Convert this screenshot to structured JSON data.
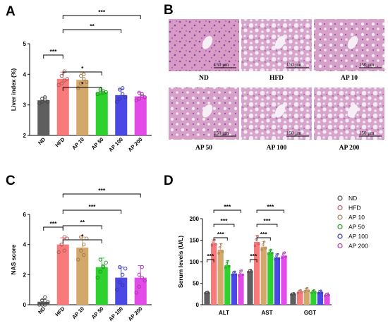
{
  "panels": {
    "A": "A",
    "B": "B",
    "C": "C",
    "D": "D"
  },
  "colors": {
    "ND": "#5f5f5f",
    "HFD": "#f87a7a",
    "AP 10": "#d4a86a",
    "AP 50": "#2fd12f",
    "AP 100": "#4b49e6",
    "AP 200": "#e24be8"
  },
  "panelB": {
    "images": [
      {
        "label": "ND",
        "scale": "150 μm"
      },
      {
        "label": "HFD",
        "scale": "150 μm"
      },
      {
        "label": "AP 10",
        "scale": "150 μm"
      },
      {
        "label": "AP 50",
        "scale": "150 μm"
      },
      {
        "label": "AP 100",
        "scale": "150 μm"
      },
      {
        "label": "AP 200",
        "scale": "150 μm"
      }
    ]
  },
  "chart_data": [
    {
      "panel": "A",
      "type": "bar",
      "ylabel": "Liver index (%)",
      "ylim": [
        2,
        5
      ],
      "yticks": [
        2,
        3,
        4,
        5
      ],
      "categories": [
        "ND",
        "HFD",
        "AP 10",
        "AP 50",
        "AP 100",
        "AP 200"
      ],
      "values": [
        3.15,
        3.85,
        3.82,
        3.42,
        3.32,
        3.28
      ],
      "errors": [
        0.1,
        0.22,
        0.22,
        0.08,
        0.2,
        0.12
      ],
      "points": [
        [
          3.05,
          3.1,
          3.15,
          3.2,
          3.25,
          3.1
        ],
        [
          3.65,
          3.7,
          3.8,
          3.95,
          4.1,
          3.85
        ],
        [
          3.55,
          3.7,
          3.85,
          3.95,
          4.0,
          3.75
        ],
        [
          3.35,
          3.4,
          3.45,
          3.5,
          3.4,
          3.42
        ],
        [
          3.1,
          3.2,
          3.35,
          3.5,
          3.55,
          3.25
        ],
        [
          3.15,
          3.2,
          3.3,
          3.4,
          3.35,
          3.25
        ]
      ],
      "significance": [
        {
          "from": 0,
          "to": 1,
          "label": "***"
        },
        {
          "from": 1,
          "to": 3,
          "label": "*"
        },
        {
          "from": 1,
          "to": 3,
          "label": "*"
        },
        {
          "from": 1,
          "to": 4,
          "label": "**"
        },
        {
          "from": 1,
          "to": 5,
          "label": "***"
        }
      ]
    },
    {
      "panel": "C",
      "type": "bar",
      "ylabel": "NAS score",
      "ylim": [
        0,
        6
      ],
      "yticks": [
        0,
        2,
        4,
        6
      ],
      "categories": [
        "ND",
        "HFD",
        "AP 10",
        "AP 50",
        "AP 100",
        "AP 200"
      ],
      "values": [
        0.2,
        4.0,
        3.8,
        2.5,
        1.8,
        1.8
      ],
      "errors": [
        0.15,
        0.45,
        0.7,
        0.6,
        0.7,
        0.8
      ],
      "points": [
        [
          0.0,
          0.0,
          0.0,
          0.3,
          0.5,
          0.2
        ],
        [
          3.5,
          4.0,
          4.5,
          4.0,
          3.6,
          4.4
        ],
        [
          3.0,
          3.6,
          4.0,
          4.5,
          3.3,
          4.4
        ],
        [
          1.8,
          2.2,
          2.6,
          3.0,
          2.5,
          2.8
        ],
        [
          1.0,
          1.5,
          2.0,
          2.5,
          1.3,
          2.4
        ],
        [
          0.8,
          1.2,
          1.8,
          2.0,
          2.5,
          1.6
        ]
      ],
      "significance": [
        {
          "from": 0,
          "to": 1,
          "label": "***"
        },
        {
          "from": 1,
          "to": 3,
          "label": "*"
        },
        {
          "from": 1,
          "to": 3,
          "label": "**"
        },
        {
          "from": 1,
          "to": 4,
          "label": "***"
        },
        {
          "from": 1,
          "to": 5,
          "label": "***"
        }
      ]
    },
    {
      "panel": "D",
      "type": "bar",
      "ylabel": "Serum levels (U/L)",
      "ylim": [
        0,
        200
      ],
      "yticks": [
        0,
        50,
        100,
        150,
        200
      ],
      "groups": [
        "ALT",
        "AST",
        "GGT"
      ],
      "series": [
        {
          "name": "ND",
          "values": [
            28,
            78,
            25
          ],
          "errors": [
            2,
            3,
            2
          ]
        },
        {
          "name": "HFD",
          "values": [
            143,
            146,
            30
          ],
          "errors": [
            8,
            15,
            4
          ]
        },
        {
          "name": "AP 10",
          "values": [
            128,
            135,
            34
          ],
          "errors": [
            14,
            12,
            5
          ]
        },
        {
          "name": "AP 50",
          "values": [
            92,
            122,
            30
          ],
          "errors": [
            10,
            6,
            4
          ]
        },
        {
          "name": "AP 100",
          "values": [
            72,
            110,
            29
          ],
          "errors": [
            5,
            8,
            4
          ]
        },
        {
          "name": "AP 200",
          "values": [
            72,
            114,
            23
          ],
          "errors": [
            8,
            8,
            3
          ]
        }
      ],
      "significance": [
        {
          "group": 0,
          "from": 0,
          "to": 1,
          "label": "***"
        },
        {
          "group": 0,
          "from": 1,
          "to": 3,
          "label": "***"
        },
        {
          "group": 0,
          "from": 1,
          "to": 4,
          "label": "***"
        },
        {
          "group": 0,
          "from": 1,
          "to": 5,
          "label": "***"
        },
        {
          "group": 1,
          "from": 0,
          "to": 1,
          "label": "***"
        },
        {
          "group": 1,
          "from": 1,
          "to": 3,
          "label": "***"
        },
        {
          "group": 1,
          "from": 1,
          "to": 4,
          "label": "***"
        },
        {
          "group": 1,
          "from": 1,
          "to": 5,
          "label": "***"
        }
      ],
      "legend": [
        "ND",
        "HFD",
        "AP 10",
        "AP 50",
        "AP 100",
        "AP 200"
      ],
      "legend_position": "right"
    }
  ]
}
